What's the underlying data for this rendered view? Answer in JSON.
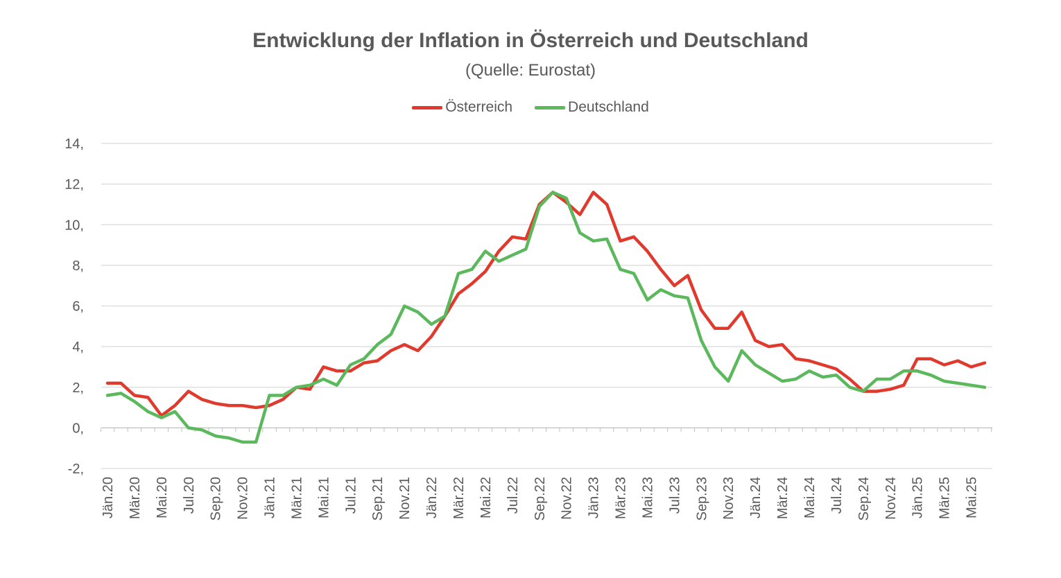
{
  "chart_data": {
    "type": "line",
    "title": "Entwicklung der Inflation in Österreich und Deutschland",
    "subtitle": "(Quelle: Eurostat)",
    "xlabel": "",
    "ylabel": "",
    "ylim": [
      -2,
      14
    ],
    "y_ticks": [
      -2,
      0,
      2,
      4,
      6,
      8,
      10,
      12,
      14
    ],
    "y_tick_labels": [
      "-2,",
      "0,",
      "2,",
      "4,",
      "6,",
      "8,",
      "10,",
      "12,",
      "14,"
    ],
    "grid": true,
    "legend_position": "top-center",
    "categories": [
      "Jän.20",
      "Feb.20",
      "Mär.20",
      "Apr.20",
      "Mai.20",
      "Jun.20",
      "Jul.20",
      "Aug.20",
      "Sep.20",
      "Okt.20",
      "Nov.20",
      "Dez.20",
      "Jän.21",
      "Feb.21",
      "Mär.21",
      "Apr.21",
      "Mai.21",
      "Jun.21",
      "Jul.21",
      "Aug.21",
      "Sep.21",
      "Okt.21",
      "Nov.21",
      "Dez.21",
      "Jän.22",
      "Feb.22",
      "Mär.22",
      "Apr.22",
      "Mai.22",
      "Jun.22",
      "Jul.22",
      "Aug.22",
      "Sep.22",
      "Okt.22",
      "Nov.22",
      "Dez.22",
      "Jän.23",
      "Feb.23",
      "Mär.23",
      "Apr.23",
      "Mai.23",
      "Jun.23",
      "Jul.23",
      "Aug.23",
      "Sep.23",
      "Okt.23",
      "Nov.23",
      "Dez.23",
      "Jän.24",
      "Feb.24",
      "Mär.24",
      "Apr.24",
      "Mai.24",
      "Jun.24",
      "Jul.24",
      "Aug.24",
      "Sep.24",
      "Okt.24",
      "Nov.24",
      "Dez.24",
      "Jän.25",
      "Feb.25",
      "Mär.25",
      "Apr.25",
      "Mai.25",
      "Jun.25"
    ],
    "x_tick_labels": [
      "Jän.20",
      "Mär.20",
      "Mai.20",
      "Jul.20",
      "Sep.20",
      "Nov.20",
      "Jän.21",
      "Mär.21",
      "Mai.21",
      "Jul.21",
      "Sep.21",
      "Nov.21",
      "Jän.22",
      "Mär.22",
      "Mai.22",
      "Jul.22",
      "Sep.22",
      "Nov.22",
      "Jän.23",
      "Mär.23",
      "Mai.23",
      "Jul.23",
      "Sep.23",
      "Nov.23",
      "Jän.24",
      "Mär.24",
      "Mai.24",
      "Jul.24",
      "Sep.24",
      "Nov.24",
      "Jän.25",
      "Mär.25",
      "Mai.25"
    ],
    "series": [
      {
        "name": "Österreich",
        "color": "#e03a2e",
        "values": [
          2.2,
          2.2,
          1.6,
          1.5,
          0.6,
          1.1,
          1.8,
          1.4,
          1.2,
          1.1,
          1.1,
          1.0,
          1.1,
          1.4,
          2.0,
          1.9,
          3.0,
          2.8,
          2.8,
          3.2,
          3.3,
          3.8,
          4.1,
          3.8,
          4.5,
          5.5,
          6.6,
          7.1,
          7.7,
          8.7,
          9.4,
          9.3,
          11.0,
          11.6,
          11.1,
          10.5,
          11.6,
          11.0,
          9.2,
          9.4,
          8.7,
          7.8,
          7.0,
          7.5,
          5.8,
          4.9,
          4.9,
          5.7,
          4.3,
          4.0,
          4.1,
          3.4,
          3.3,
          3.1,
          2.9,
          2.4,
          1.8,
          1.8,
          1.9,
          2.1,
          3.4,
          3.4,
          3.1,
          3.3,
          3.0,
          3.2
        ]
      },
      {
        "name": "Deutschland",
        "color": "#5cb85c",
        "values": [
          1.6,
          1.7,
          1.3,
          0.8,
          0.5,
          0.8,
          0.0,
          -0.1,
          -0.4,
          -0.5,
          -0.7,
          -0.7,
          1.6,
          1.6,
          2.0,
          2.1,
          2.4,
          2.1,
          3.1,
          3.4,
          4.1,
          4.6,
          6.0,
          5.7,
          5.1,
          5.5,
          7.6,
          7.8,
          8.7,
          8.2,
          8.5,
          8.8,
          10.9,
          11.6,
          11.3,
          9.6,
          9.2,
          9.3,
          7.8,
          7.6,
          6.3,
          6.8,
          6.5,
          6.4,
          4.3,
          3.0,
          2.3,
          3.8,
          3.1,
          2.7,
          2.3,
          2.4,
          2.8,
          2.5,
          2.6,
          2.0,
          1.8,
          2.4,
          2.4,
          2.8,
          2.8,
          2.6,
          2.3,
          2.2,
          2.1,
          2.0
        ]
      }
    ]
  }
}
